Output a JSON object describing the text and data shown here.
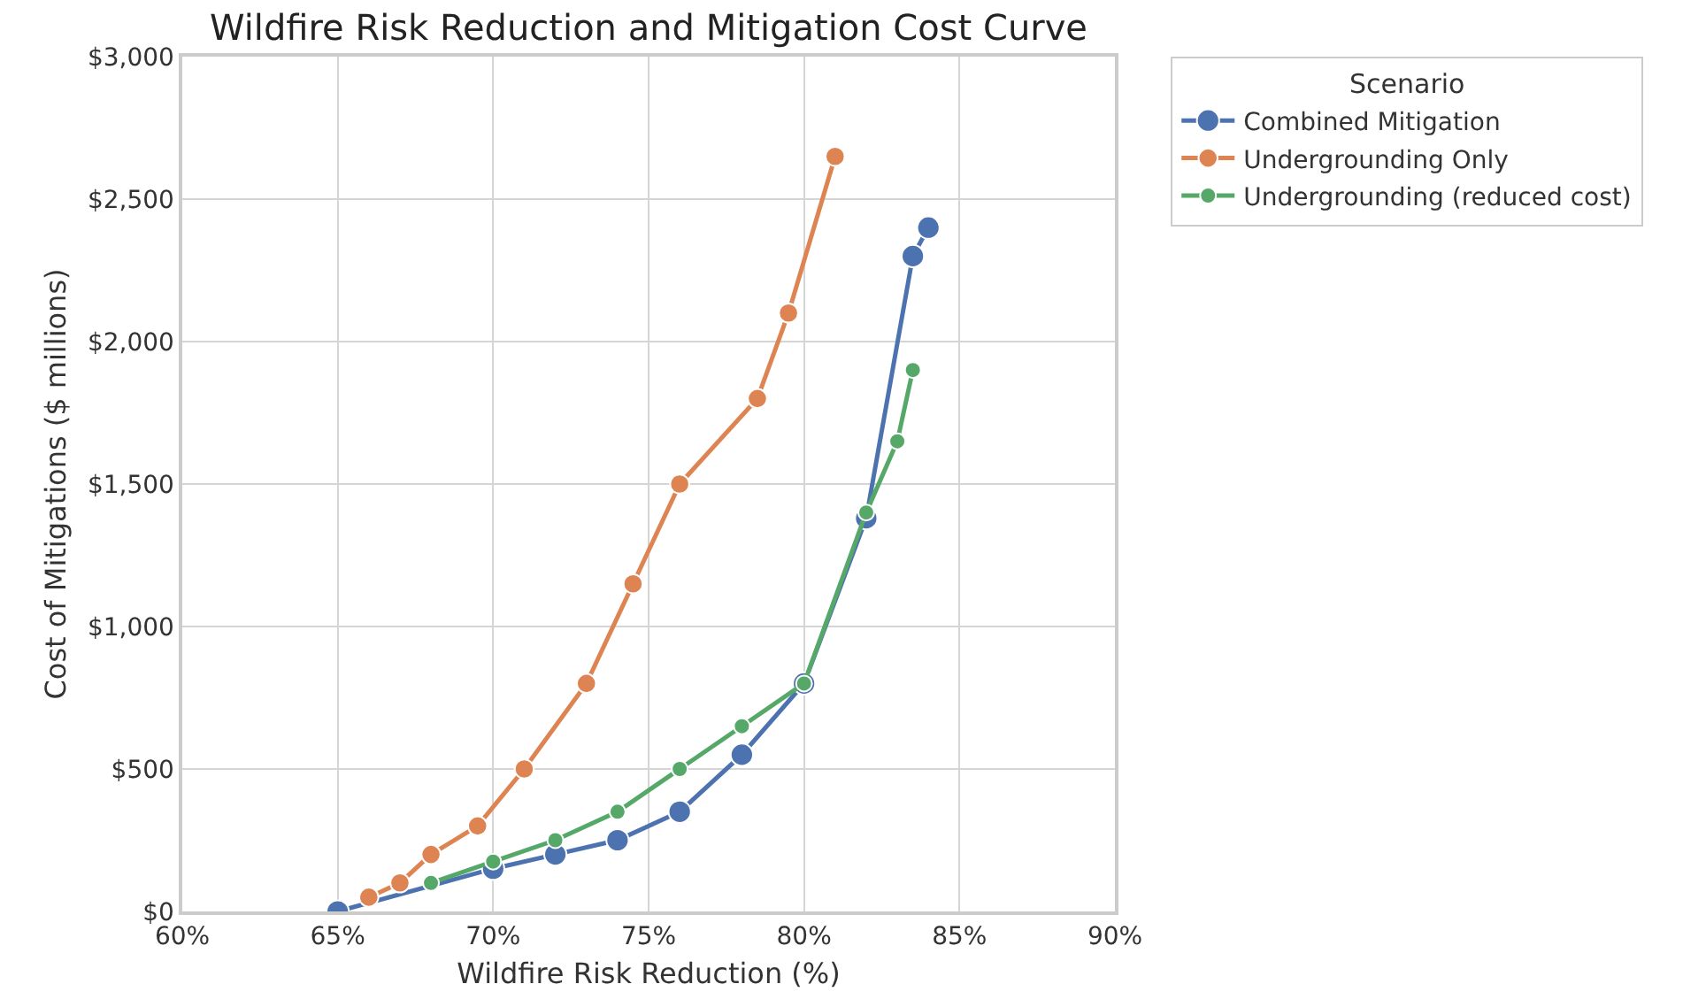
{
  "chart_data": {
    "type": "line",
    "title": "Wildfire Risk Reduction and Mitigation Cost Curve",
    "xlabel": "Wildfire Risk Reduction (%)",
    "ylabel": "Cost of Mitigations ($ millions)",
    "legend_title": "Scenario",
    "xlim": [
      60,
      90
    ],
    "ylim": [
      0,
      3000
    ],
    "xticks": [
      {
        "value": 60,
        "label": "60%"
      },
      {
        "value": 65,
        "label": "65%"
      },
      {
        "value": 70,
        "label": "70%"
      },
      {
        "value": 75,
        "label": "75%"
      },
      {
        "value": 80,
        "label": "80%"
      },
      {
        "value": 85,
        "label": "85%"
      },
      {
        "value": 90,
        "label": "90%"
      }
    ],
    "yticks": [
      {
        "value": 0,
        "label": "$0"
      },
      {
        "value": 500,
        "label": "$500"
      },
      {
        "value": 1000,
        "label": "$1,000"
      },
      {
        "value": 1500,
        "label": "$1,500"
      },
      {
        "value": 2000,
        "label": "$2,000"
      },
      {
        "value": 2500,
        "label": "$2,500"
      },
      {
        "value": 3000,
        "label": "$3,000"
      }
    ],
    "grid": true,
    "legend": "top right",
    "marker": "circle",
    "line_style": "solid",
    "series": [
      {
        "name": "Combined Mitigation",
        "color": "#4c72b0",
        "x": [
          65,
          70,
          72,
          74,
          76,
          78,
          80,
          82,
          83.5,
          84
        ],
        "values": [
          0,
          150,
          200,
          250,
          350,
          550,
          800,
          1380,
          2300,
          2400
        ]
      },
      {
        "name": "Undergrounding Only",
        "color": "#dd8452",
        "x": [
          66,
          67,
          68,
          69.5,
          71,
          73,
          74.5,
          76,
          78.5,
          79.5,
          81
        ],
        "values": [
          50,
          100,
          200,
          300,
          500,
          800,
          1150,
          1500,
          1800,
          2100,
          2650
        ]
      },
      {
        "name": "Undergrounding (reduced cost)",
        "color": "#55a868",
        "x": [
          68,
          70,
          72,
          74,
          76,
          78,
          80,
          82,
          83,
          83.5
        ],
        "values": [
          100,
          175,
          250,
          350,
          500,
          650,
          800,
          1400,
          1650,
          1900
        ]
      }
    ]
  }
}
